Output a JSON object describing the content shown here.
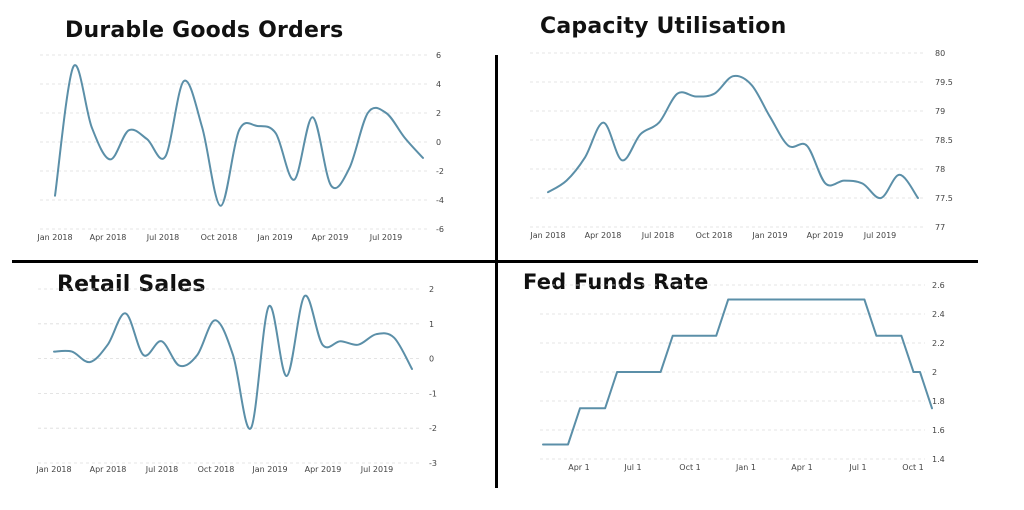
{
  "chart_data": [
    {
      "type": "line",
      "title": "Durable Goods Orders",
      "x_tick_labels": [
        "Jan 2018",
        "Apr 2018",
        "Jul 2018",
        "Oct 2018",
        "Jan 2019",
        "Apr 2019",
        "Jul 2019"
      ],
      "y_ticks": [
        6,
        4,
        2,
        0,
        -2,
        -4,
        -6
      ],
      "ylim": [
        -6,
        6
      ],
      "grid": true,
      "series": [
        {
          "color": "#5b8fa8",
          "x": [
            "2018-01",
            "2018-02",
            "2018-03",
            "2018-04",
            "2018-05",
            "2018-06",
            "2018-07",
            "2018-08",
            "2018-09",
            "2018-10",
            "2018-11",
            "2018-12",
            "2019-01",
            "2019-02",
            "2019-03",
            "2019-04",
            "2019-05",
            "2019-06",
            "2019-07",
            "2019-08",
            "2019-09"
          ],
          "values": [
            -3.7,
            5.2,
            1.0,
            -1.2,
            0.8,
            0.2,
            -1.0,
            4.2,
            1.0,
            -4.4,
            0.8,
            1.1,
            0.6,
            -2.6,
            1.7,
            -3.0,
            -1.8,
            2.0,
            2.0,
            0.3,
            -1.1
          ]
        }
      ]
    },
    {
      "type": "line",
      "title": "Capacity Utilisation",
      "x_tick_labels": [
        "Jan 2018",
        "Apr 2018",
        "Jul 2018",
        "Oct 2018",
        "Jan 2019",
        "Apr 2019",
        "Jul 2019"
      ],
      "y_ticks": [
        80,
        79.5,
        79,
        78.5,
        78,
        77.5,
        77
      ],
      "ylim": [
        77,
        80
      ],
      "grid": true,
      "series": [
        {
          "color": "#5b8fa8",
          "x": [
            "2018-01",
            "2018-02",
            "2018-03",
            "2018-04",
            "2018-05",
            "2018-06",
            "2018-07",
            "2018-08",
            "2018-09",
            "2018-10",
            "2018-11",
            "2018-12",
            "2019-01",
            "2019-02",
            "2019-03",
            "2019-04",
            "2019-05",
            "2019-06",
            "2019-07",
            "2019-08",
            "2019-09"
          ],
          "values": [
            77.6,
            77.8,
            78.2,
            78.8,
            78.15,
            78.6,
            78.8,
            79.3,
            79.25,
            79.3,
            79.6,
            79.45,
            78.9,
            78.4,
            78.4,
            77.75,
            77.8,
            77.75,
            77.5,
            77.9,
            77.5
          ]
        }
      ]
    },
    {
      "type": "line",
      "title": "Retail Sales",
      "x_tick_labels": [
        "Jan 2018",
        "Apr 2018",
        "Jul 2018",
        "Oct 2018",
        "Jan 2019",
        "Apr 2019",
        "Jul 2019"
      ],
      "y_ticks": [
        2,
        1,
        0,
        -1,
        -2,
        -3
      ],
      "ylim": [
        -3,
        2
      ],
      "grid": true,
      "series": [
        {
          "color": "#5b8fa8",
          "x": [
            "2018-01",
            "2018-02",
            "2018-03",
            "2018-04",
            "2018-05",
            "2018-06",
            "2018-07",
            "2018-08",
            "2018-09",
            "2018-10",
            "2018-11",
            "2018-12",
            "2019-01",
            "2019-02",
            "2019-03",
            "2019-04",
            "2019-05",
            "2019-06",
            "2019-07",
            "2019-08",
            "2019-09"
          ],
          "values": [
            0.2,
            0.2,
            -0.1,
            0.4,
            1.3,
            0.1,
            0.5,
            -0.2,
            0.1,
            1.1,
            0.1,
            -2.0,
            1.5,
            -0.5,
            1.8,
            0.4,
            0.5,
            0.4,
            0.7,
            0.6,
            -0.3
          ]
        }
      ]
    },
    {
      "type": "line",
      "title": "Fed Funds Rate",
      "x_tick_labels": [
        "Apr 1",
        "Jul 1",
        "Oct 1",
        "Jan 1",
        "Apr 1",
        "Jul 1",
        "Oct 1"
      ],
      "y_ticks": [
        2.6,
        2.4,
        2.2,
        2,
        1.8,
        1.6,
        1.4
      ],
      "ylim": [
        1.4,
        2.6
      ],
      "grid": true,
      "series": [
        {
          "color": "#5b8fa8",
          "x": [
            "2018-01-01",
            "2018-02-01",
            "2018-03-01",
            "2018-04-01",
            "2018-05-01",
            "2018-06-01",
            "2018-07-01",
            "2018-08-01",
            "2018-09-01",
            "2018-10-01",
            "2018-11-01",
            "2018-12-01",
            "2019-01-01",
            "2019-02-01",
            "2019-03-01",
            "2019-04-01",
            "2019-05-01",
            "2019-06-01",
            "2019-07-01",
            "2019-08-01",
            "2019-09-01",
            "2019-10-01"
          ],
          "values": [
            1.5,
            1.5,
            1.75,
            1.75,
            2.0,
            2.0,
            2.0,
            2.25,
            2.25,
            2.25,
            2.5,
            2.5,
            2.5,
            2.5,
            2.5,
            2.5,
            2.5,
            2.5,
            2.25,
            2.25,
            2.0,
            1.75
          ]
        }
      ]
    }
  ]
}
